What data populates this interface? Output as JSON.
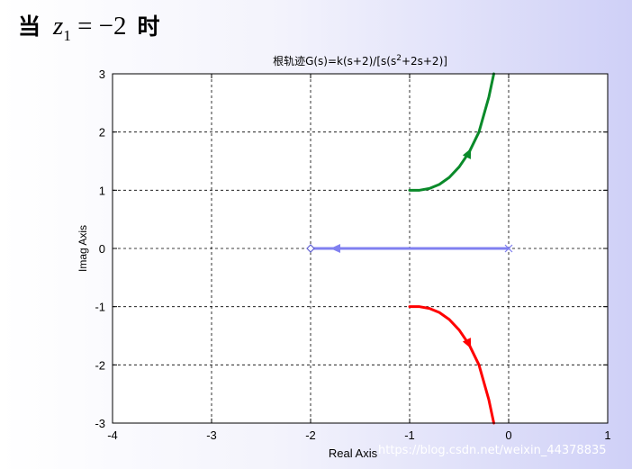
{
  "heading": {
    "prefix": "当",
    "variable": "z",
    "subscript": "1",
    "equation": "= −2",
    "suffix": "时"
  },
  "watermark": "https://blog.csdn.net/weixin_44378835",
  "chart_data": {
    "type": "line",
    "title": "根轨迹G(s)=k(s+2)/[s(s²+2s+2)]",
    "title_parts": {
      "before": "根轨迹G(s)=k(s+2)/[s(s",
      "superscript": "2",
      "after": "+2s+2)]"
    },
    "xlabel": "Real Axis",
    "ylabel": "Imag Axis",
    "xlim": [
      -4,
      1
    ],
    "ylim": [
      -3,
      3
    ],
    "xticks": [
      -4,
      -3,
      -2,
      -1,
      0,
      1
    ],
    "yticks": [
      -3,
      -2,
      -1,
      0,
      1,
      2,
      3
    ],
    "xtick_labels": [
      "-4",
      "-3",
      "-2",
      "-1",
      "0",
      "1"
    ],
    "ytick_labels": [
      "-3",
      "-2",
      "-1",
      "0",
      "1",
      "2",
      "3"
    ],
    "grid": true,
    "series": [
      {
        "color": "#0a8a2a",
        "x": [
          -1.0,
          -0.9,
          -0.8,
          -0.7,
          -0.6,
          -0.5,
          -0.4,
          -0.3,
          -0.2,
          -0.15
        ],
        "y": [
          1.0,
          1.0,
          1.03,
          1.1,
          1.22,
          1.4,
          1.65,
          2.0,
          2.6,
          3.0
        ],
        "arrow_at": {
          "x": -0.38,
          "y": 1.72
        }
      },
      {
        "color": "#ff0000",
        "x": [
          -1.0,
          -0.9,
          -0.8,
          -0.7,
          -0.6,
          -0.5,
          -0.4,
          -0.3,
          -0.2,
          -0.15
        ],
        "y": [
          -1.0,
          -1.0,
          -1.03,
          -1.1,
          -1.22,
          -1.4,
          -1.65,
          -2.0,
          -2.6,
          -3.0
        ],
        "arrow_at": {
          "x": -0.38,
          "y": -1.72
        }
      },
      {
        "color": "#8080f0",
        "x": [
          0,
          -2
        ],
        "y": [
          0,
          0
        ],
        "arrow_at": {
          "x": -1.8,
          "y": 0
        }
      }
    ],
    "poles": [
      {
        "x": 0,
        "y": 0
      }
    ],
    "zeros": [
      {
        "x": -2,
        "y": 0
      }
    ]
  }
}
